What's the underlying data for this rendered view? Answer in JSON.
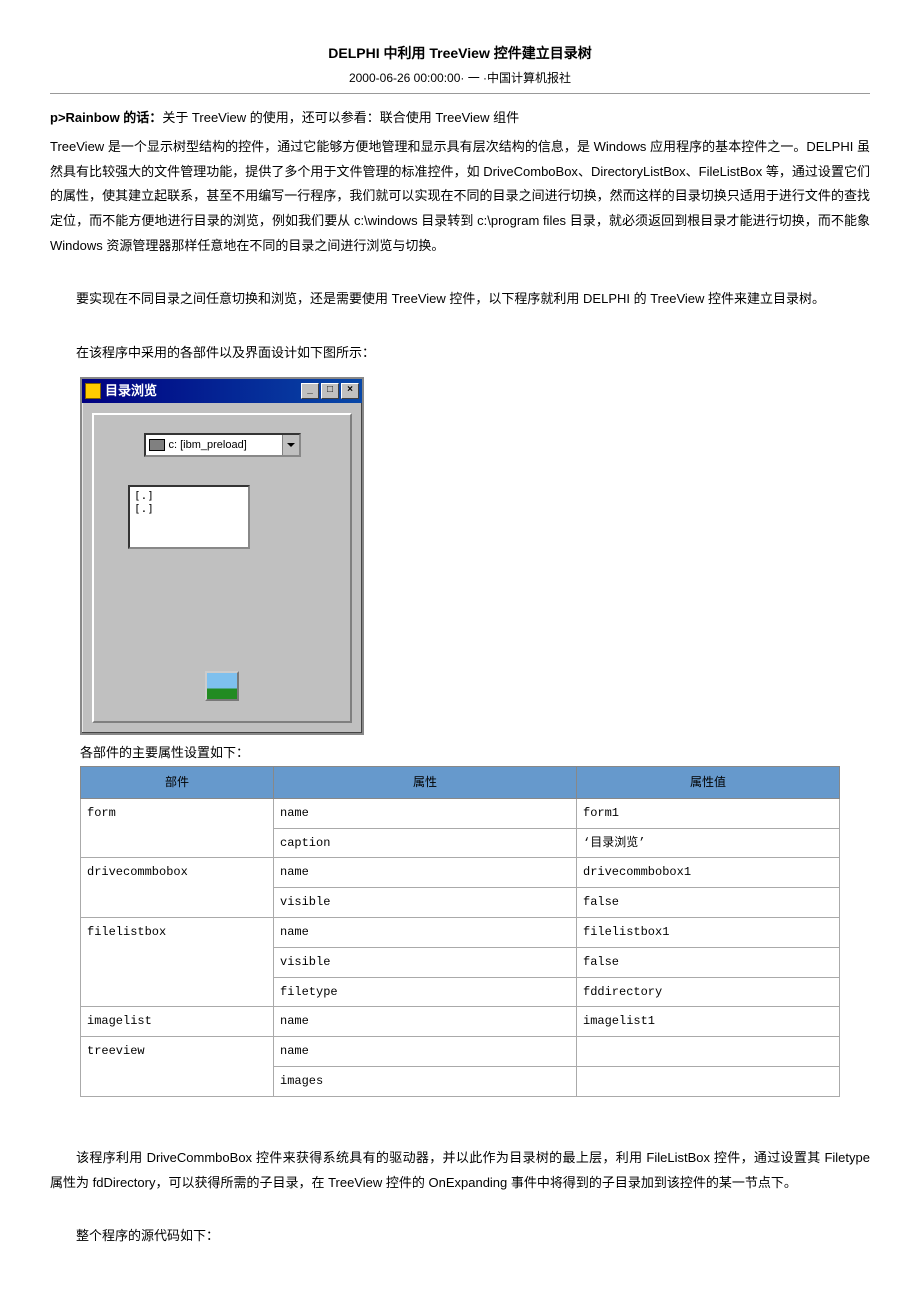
{
  "title": "DELPHI 中利用 TreeView 控件建立目录树",
  "subtitle": "2000-06-26 00:00:00·  一 ·中国计算机报社",
  "p1_lead": "p>Rainbow 的话：",
  "p1_rest": "关于 TreeView 的使用，还可以参看：联合使用 TreeView  组件",
  "p2": "TreeView 是一个显示树型结构的控件，通过它能够方便地管理和显示具有层次结构的信息，是 Windows 应用程序的基本控件之一。DELPHI 虽然具有比较强大的文件管理功能，提供了多个用于文件管理的标准控件，如 DriveComboBox、DirectoryListBox、FileListBox 等，通过设置它们的属性，使其建立起联系，甚至不用编写一行程序，我们就可以实现在不同的目录之间进行切换，然而这样的目录切换只适用于进行文件的查找定位，而不能方便地进行目录的浏览，例如我们要从 c:\\windows 目录转到 c:\\program files 目录，就必须返回到根目录才能进行切换，而不能象 Windows 资源管理器那样任意地在不同的目录之间进行浏览与切换。",
  "p3": "要实现在不同目录之间任意切换和浏览，还是需要使用 TreeView 控件，以下程序就利用 DELPHI 的 TreeView 控件来建立目录树。",
  "p4": "在该程序中采用的各部件以及界面设计如下图所示：",
  "window": {
    "caption": "目录浏览",
    "drive_text": "c: [ibm_preload]",
    "list_items": [
      "[.]",
      "[.]"
    ]
  },
  "table_caption": "各部件的主要属性设置如下：",
  "table": {
    "headers": [
      "部件",
      "属性",
      "属性值"
    ],
    "rows": [
      {
        "comp": "form",
        "props": [
          "name",
          "caption"
        ],
        "vals": [
          "form1",
          "‘目录浏览’"
        ]
      },
      {
        "comp": "drivecommbobox",
        "props": [
          "name",
          "visible"
        ],
        "vals": [
          "drivecommbobox1",
          "false"
        ]
      },
      {
        "comp": "filelistbox",
        "props": [
          "name",
          "visible",
          "filetype"
        ],
        "vals": [
          "filelistbox1",
          "false",
          "fddirectory"
        ]
      },
      {
        "comp": "imagelist",
        "props": [
          "name"
        ],
        "vals": [
          "imagelist1"
        ]
      },
      {
        "comp": "treeview",
        "props": [
          "name",
          "images"
        ],
        "vals": [
          "",
          ""
        ]
      }
    ]
  },
  "p5": "该程序利用 DriveCommboBox 控件来获得系统具有的驱动器，并以此作为目录树的最上层，利用 FileListBox 控件，通过设置其 Filetype 属性为 fdDirectory，可以获得所需的子目录，在 TreeView 控件的 OnExpanding 事件中将得到的子目录加到该控件的某一节点下。",
  "p6": "整个程序的源代码如下："
}
